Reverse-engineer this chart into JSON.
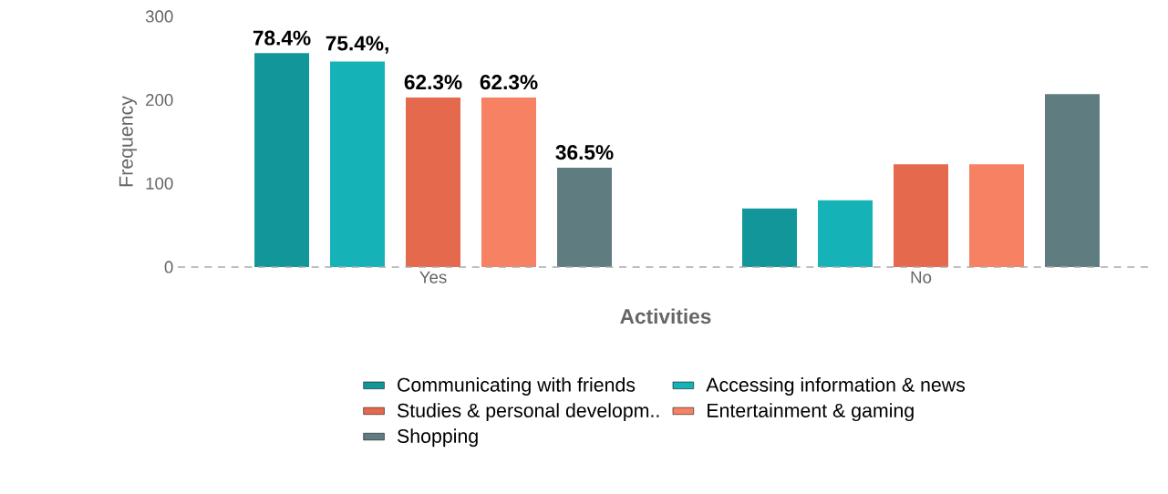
{
  "chart_data": {
    "type": "bar",
    "xlabel": "Activities",
    "ylabel": "Frequency",
    "categories": [
      "Yes",
      "No"
    ],
    "series": [
      {
        "name": "Communicating with friends",
        "color": "#13969a",
        "values": [
          256,
          70
        ]
      },
      {
        "name": "Accessing information & news",
        "color": "#15b3b8",
        "values": [
          246,
          80
        ]
      },
      {
        "name": "Studies & personal developm..",
        "color": "#e5694c",
        "values": [
          203,
          123
        ]
      },
      {
        "name": "Entertainment & gaming",
        "color": "#f68163",
        "values": [
          203,
          123
        ]
      },
      {
        "name": "Shopping",
        "color": "#5f7c80",
        "values": [
          119,
          207
        ]
      }
    ],
    "annotations": [
      "78.4%",
      "75.4%,",
      "62.3%",
      "62.3%",
      "36.5%"
    ],
    "ylim": [
      0,
      300
    ],
    "yticks": [
      0,
      100,
      200,
      300
    ],
    "ref_lines": [
      {
        "axis": "y",
        "value": 0,
        "color": "#aaaaaa",
        "line_style": "dashed"
      }
    ],
    "legend": "bottom"
  }
}
